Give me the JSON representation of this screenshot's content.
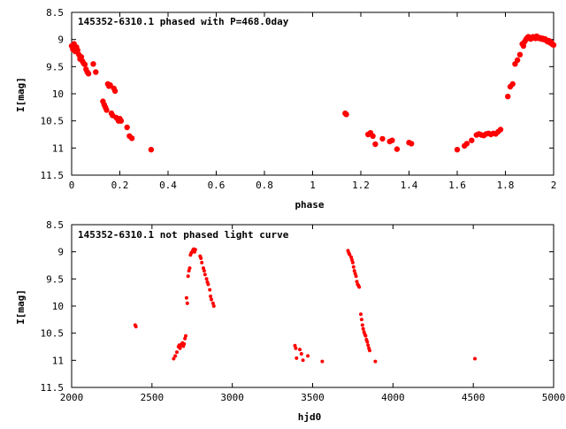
{
  "colors": {
    "points": "#ff0000",
    "axes": "#000000",
    "background": "#ffffff"
  },
  "chart_data": [
    {
      "type": "scatter",
      "title": "145352-6310.1 phased with P=468.0day",
      "xlabel": "phase",
      "ylabel": "I[mag]",
      "xlim": [
        0,
        2
      ],
      "ylim": [
        11.5,
        8.5
      ],
      "y_inverted": true,
      "grid": false,
      "legend": "none",
      "xticks": [
        0,
        0.2,
        0.4,
        0.6,
        0.8,
        1,
        1.2,
        1.4,
        1.6,
        1.8,
        2
      ],
      "xtick_labels": [
        "0",
        "0.2",
        "0.4",
        "0.6",
        "0.8",
        "1",
        "1.2",
        "1.4",
        "1.6",
        "1.8",
        "2"
      ],
      "yticks": [
        8.5,
        9,
        9.5,
        10,
        10.5,
        11,
        11.5
      ],
      "ytick_labels": [
        "8.5",
        "9",
        "9.5",
        "10",
        "10.5",
        "11",
        "11.5"
      ],
      "series": [
        {
          "x": [
            0.0,
            0.005,
            0.01,
            0.015,
            0.02,
            0.025,
            0.03,
            0.035,
            0.04,
            0.045,
            0.05,
            0.055,
            0.06,
            0.065,
            0.07,
            0.09,
            0.1,
            0.13,
            0.135,
            0.14,
            0.145,
            0.15,
            0.155,
            0.16,
            0.165,
            0.17,
            0.175,
            0.18,
            0.185,
            0.19,
            0.195,
            0.2,
            0.205,
            0.23,
            0.24,
            0.25,
            0.33,
            1.135,
            1.14,
            1.23,
            1.24,
            1.25,
            1.26,
            1.29,
            1.32,
            1.33,
            1.35,
            1.4,
            1.41,
            1.6,
            1.63,
            1.64,
            1.66,
            1.68,
            1.69,
            1.7,
            1.71,
            1.72,
            1.73,
            1.74,
            1.75,
            1.76,
            1.77,
            1.78,
            1.81,
            1.82,
            1.83,
            1.84,
            1.85,
            1.86,
            1.87,
            1.875,
            1.88,
            1.885,
            1.89,
            1.895,
            1.9,
            1.905,
            1.91,
            1.915,
            1.92,
            1.925,
            1.93,
            1.935,
            1.94,
            1.945,
            1.95,
            1.955,
            1.96,
            1.965,
            1.97,
            1.975,
            1.98,
            1.985,
            1.99,
            1.995,
            2.0
          ],
          "y": [
            9.12,
            9.18,
            9.08,
            9.22,
            9.14,
            9.2,
            9.28,
            9.36,
            9.32,
            9.4,
            9.44,
            9.46,
            9.55,
            9.6,
            9.63,
            9.45,
            9.6,
            10.14,
            10.2,
            10.25,
            10.3,
            9.82,
            9.86,
            9.84,
            10.36,
            10.4,
            9.9,
            9.95,
            10.44,
            10.46,
            10.5,
            10.46,
            10.5,
            10.62,
            10.78,
            10.82,
            11.03,
            10.36,
            10.38,
            10.75,
            10.72,
            10.78,
            10.93,
            10.83,
            10.88,
            10.86,
            11.02,
            10.9,
            10.92,
            11.03,
            10.96,
            10.92,
            10.86,
            10.76,
            10.74,
            10.76,
            10.77,
            10.74,
            10.73,
            10.75,
            10.73,
            10.74,
            10.7,
            10.66,
            10.05,
            9.87,
            9.82,
            9.45,
            9.38,
            9.28,
            9.08,
            9.12,
            9.04,
            9.0,
            8.97,
            8.95,
            8.96,
            8.99,
            8.97,
            8.95,
            8.97,
            8.98,
            8.94,
            8.96,
            8.98,
            8.97,
            8.99,
            8.98,
            9.0,
            8.99,
            9.02,
            9.04,
            9.02,
            9.06,
            9.05,
            9.09,
            9.1
          ]
        }
      ]
    },
    {
      "type": "scatter",
      "title": "145352-6310.1 not phased light curve",
      "xlabel": "hjd0",
      "ylabel": "I[mag]",
      "xlim": [
        2000,
        5000
      ],
      "ylim": [
        11.5,
        8.5
      ],
      "y_inverted": true,
      "grid": false,
      "legend": "none",
      "xticks": [
        2000,
        2500,
        3000,
        3500,
        4000,
        4500,
        5000
      ],
      "xtick_labels": [
        "2000",
        "2500",
        "3000",
        "3500",
        "4000",
        "4500",
        "5000"
      ],
      "yticks": [
        8.5,
        9,
        9.5,
        10,
        10.5,
        11,
        11.5
      ],
      "ytick_labels": [
        "8.5",
        "9",
        "9.5",
        "10",
        "10.5",
        "11",
        "11.5"
      ],
      "series": [
        {
          "x": [
            2395,
            2400,
            2635,
            2645,
            2655,
            2665,
            2670,
            2675,
            2680,
            2685,
            2690,
            2695,
            2700,
            2705,
            2710,
            2715,
            2720,
            2725,
            2730,
            2735,
            2740,
            2745,
            2750,
            2755,
            2760,
            2765,
            2770,
            2800,
            2805,
            2810,
            2820,
            2825,
            2830,
            2840,
            2845,
            2850,
            2860,
            2865,
            2870,
            2880,
            2885,
            3390,
            3395,
            3400,
            3420,
            3430,
            3440,
            3470,
            3560,
            3720,
            3725,
            3730,
            3740,
            3745,
            3750,
            3755,
            3760,
            3765,
            3770,
            3775,
            3780,
            3785,
            3790,
            3800,
            3805,
            3810,
            3815,
            3820,
            3825,
            3830,
            3835,
            3840,
            3845,
            3850,
            3855,
            3890,
            4510
          ],
          "y": [
            10.35,
            10.38,
            10.97,
            10.92,
            10.85,
            10.75,
            10.72,
            10.78,
            10.72,
            10.7,
            10.68,
            10.74,
            10.7,
            10.6,
            10.55,
            9.85,
            9.95,
            9.45,
            9.35,
            9.3,
            9.06,
            9.02,
            9.0,
            8.97,
            8.95,
            9.0,
            8.96,
            9.08,
            9.12,
            9.2,
            9.3,
            9.35,
            9.42,
            9.5,
            9.56,
            9.6,
            9.7,
            9.82,
            9.88,
            9.95,
            10.0,
            10.73,
            10.78,
            10.96,
            10.8,
            10.88,
            11.0,
            10.92,
            11.02,
            8.98,
            9.02,
            9.05,
            9.1,
            9.15,
            9.2,
            9.28,
            9.35,
            9.4,
            9.45,
            9.55,
            9.6,
            9.62,
            9.65,
            10.15,
            10.25,
            10.35,
            10.42,
            10.48,
            10.52,
            10.55,
            10.62,
            10.66,
            10.72,
            10.78,
            10.82,
            11.02,
            10.97
          ]
        }
      ]
    }
  ]
}
